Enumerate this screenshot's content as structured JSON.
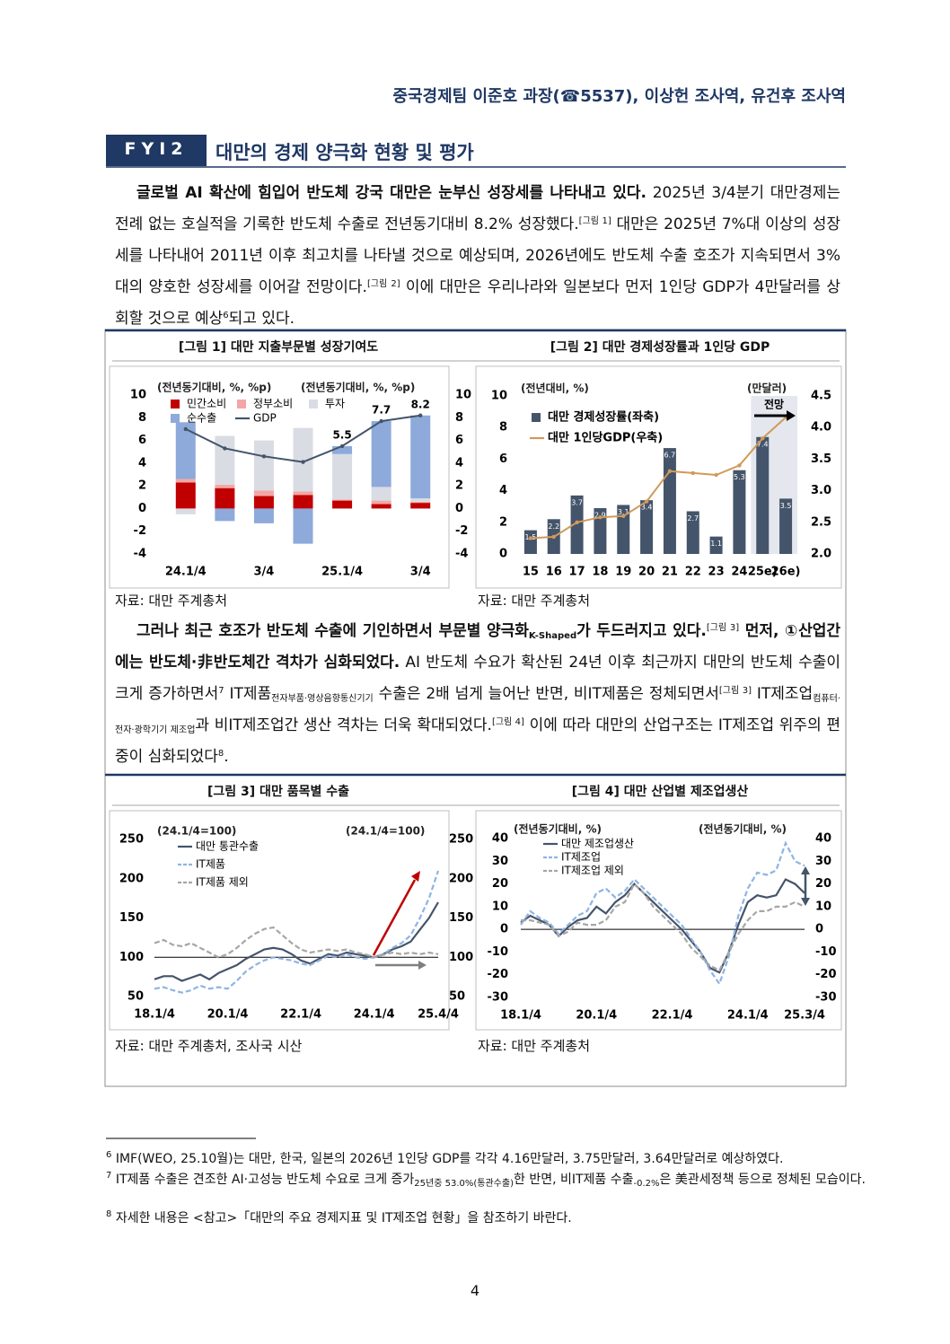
{
  "header": {
    "author": "중국경제팀 이준호 과장(☎5537), 이상헌 조사역, 유건후 조사역"
  },
  "section": {
    "label": "FYI2",
    "title": "대만의 경제 양극화 현황 및 평가"
  },
  "paragraphs": [
    [
      "글로벌 AI 확산에 힘입어 반도체 강국 대만은 눈부신 성장세를 나타내고 있다.",
      " 2025년 3/4분기 대만경제는 전례 없는 호실적을 기록한 반도체 수출로 전년동기대비 8.2% 성장했다.",
      "[그림 1]",
      " 대만은 2025년 7%대 이상의 성장세를 나타내어 2011년 이후 최고치를 나타낼 것으로 예상되며, 2026년에도 반도체 수출 호조가 지속되면서 3%대의 양호한 성장세를 이어갈 전망이다.",
      "[그림 2]",
      " 이에 대만은 우리나라와 일본보다 먼저 1인당 GDP가 4만달러를 상회할 것으로 예상",
      "6",
      "되고 있다."
    ],
    [
      "그러나 최근 호조가 반도체 수출에 기인하면서 부문별 양극화",
      "K-Shaped",
      "가 두드러지고 있다.",
      "[그림 3]",
      " 먼저, ①산업간에는 반도체·非반도체간 격차가 심화되었다.",
      " AI 반도체 수요가 확산된 24년 이후 최근까지 대만의 반도체 수출이 크게 증가하면서",
      "7",
      " IT제품",
      "전자부품·영상음향통신기기",
      " 수출은 2배 넘게 늘어난 반면, 비IT제품은 정체되면서",
      "[그림 3]",
      " IT제조업",
      "컴퓨터·전자·광학기기 제조업",
      "과 비IT제조업간 생산 격차는 더욱 확대되었다.",
      "[그림 4]",
      " 이에 따라 대만의 산업구조는 IT제조업 위주의 편중이 심화되었다",
      "8",
      "."
    ]
  ],
  "chart_data": [
    {
      "type": "bar",
      "stacked": true,
      "title": "[그림 1] 대만 지출부문별 성장기여도",
      "source": "자료: 대만 주계총처",
      "y_label": "(전년동기대비, %, %p)",
      "y2_label": "(전년동기대비, %, %p)",
      "categories": [
        "24.1/4",
        null,
        "3/4",
        null,
        "25.1/4",
        null,
        "3/4"
      ],
      "series": [
        {
          "name": "민간소비",
          "color": "#c00000",
          "values": [
            2.3,
            1.8,
            1.1,
            1.2,
            0.7,
            0.4,
            0.5
          ]
        },
        {
          "name": "정부소비",
          "color": "#f4a6a6",
          "values": [
            0.3,
            0.3,
            0.5,
            0.3,
            0.1,
            0.3,
            0.1
          ]
        },
        {
          "name": "투자",
          "color": "#d9dce3",
          "values": [
            -0.5,
            4.3,
            4.4,
            5.6,
            4.0,
            1.2,
            0.3
          ]
        },
        {
          "name": "순수출",
          "color": "#8eaadb",
          "values": [
            5.0,
            -1.1,
            -1.3,
            -3.1,
            0.7,
            5.8,
            7.3
          ]
        },
        {
          "name": "GDP",
          "type": "line",
          "color": "#44546a",
          "values": [
            7.0,
            5.3,
            4.6,
            4.1,
            5.5,
            7.7,
            8.2
          ],
          "value_labels": [
            null,
            null,
            null,
            null,
            "5.5",
            "7.7",
            "8.2"
          ]
        }
      ],
      "ylim": [
        -4,
        10
      ],
      "yticks": [
        -4,
        -2,
        0,
        2,
        4,
        6,
        8,
        10
      ],
      "y2lim": [
        -4,
        10
      ],
      "y2ticks": [
        -4,
        -2,
        0,
        2,
        4,
        6,
        8,
        10
      ]
    },
    {
      "type": "bar",
      "title": "[그림 2] 대만 경제성장률과 1인당 GDP",
      "source": "자료: 대만 주계총처",
      "y_label": "(전년대비, %)",
      "y2_label": "(만달러)",
      "annotation": "전망",
      "data_labels": true,
      "categories": [
        "15",
        "16",
        "17",
        "18",
        "19",
        "20",
        "21",
        "22",
        "23",
        "24",
        "25e)",
        "26e)"
      ],
      "series": [
        {
          "name": "대만 경제성장률(좌축)",
          "color": "#44546a",
          "values": [
            1.5,
            2.2,
            3.7,
            2.9,
            3.1,
            3.4,
            6.7,
            2.7,
            1.1,
            5.3,
            7.4,
            3.5
          ]
        },
        {
          "name": "대만 1인당GDP(우축)",
          "type": "line",
          "axis": "y2",
          "color": "#d09a5a",
          "values": [
            2.25,
            2.27,
            2.5,
            2.58,
            2.6,
            2.83,
            3.31,
            3.28,
            3.25,
            3.4,
            3.83,
            4.16
          ]
        }
      ],
      "ylim": [
        0,
        10
      ],
      "yticks": [
        0,
        2,
        4,
        6,
        8,
        10
      ],
      "y2lim": [
        2,
        4.5
      ],
      "y2ticks": [
        {
          "value": 2,
          "label": "2.0"
        },
        2.5,
        {
          "value": 3,
          "label": "3.0"
        },
        3.5,
        {
          "value": 4,
          "label": "4.0"
        },
        4.5
      ]
    },
    {
      "type": "line",
      "title": "[그림 3] 대만 품목별 수출",
      "source": "자료: 대만 주계총처, 조사국 시산",
      "y_label": "(24.1/4=100)",
      "y2_label": "(24.1/4=100)",
      "hline": 100,
      "categories": [
        "18.1/4",
        null,
        null,
        null,
        null,
        null,
        null,
        null,
        "20.1/4",
        null,
        null,
        null,
        null,
        null,
        null,
        null,
        "22.1/4",
        null,
        null,
        null,
        null,
        null,
        null,
        null,
        "24.1/4",
        null,
        null,
        null,
        null,
        null,
        null,
        "25.4/4"
      ],
      "series": [
        {
          "name": "대만 통관수출",
          "color": "#44546a",
          "values": [
            72,
            76,
            76,
            70,
            74,
            78,
            72,
            80,
            85,
            90,
            98,
            104,
            110,
            112,
            110,
            104,
            96,
            92,
            98,
            104,
            102,
            106,
            104,
            102,
            100,
            104,
            110,
            114,
            120,
            135,
            150,
            170
          ]
        },
        {
          "name": "IT제품",
          "color": "#8eb4e3",
          "dashed": true,
          "values": [
            60,
            62,
            58,
            55,
            58,
            64,
            60,
            62,
            60,
            70,
            82,
            90,
            96,
            100,
            98,
            96,
            92,
            90,
            96,
            102,
            100,
            104,
            100,
            98,
            100,
            104,
            112,
            118,
            128,
            150,
            175,
            210
          ]
        },
        {
          "name": "IT제품 제외",
          "color": "#a6a6a6",
          "dashed": true,
          "values": [
            118,
            122,
            116,
            114,
            118,
            112,
            106,
            100,
            104,
            112,
            122,
            130,
            136,
            138,
            128,
            118,
            110,
            106,
            108,
            110,
            108,
            110,
            106,
            104,
            100,
            103,
            106,
            104,
            106,
            104,
            106,
            104
          ]
        }
      ],
      "ylim": [
        50,
        250
      ],
      "yticks": [
        50,
        100,
        150,
        200,
        250
      ],
      "y2lim": [
        50,
        250
      ],
      "y2ticks": [
        50,
        100,
        150,
        200,
        250
      ]
    },
    {
      "type": "line",
      "title": "[그림 4] 대만 산업별 제조업생산",
      "source": "자료: 대만 주계총처",
      "y_label": "(전년동기대비, %)",
      "y2_label": "(전년동기대비, %)",
      "hline": 0,
      "categories": [
        "18.1/4",
        null,
        null,
        null,
        null,
        null,
        null,
        null,
        "20.1/4",
        null,
        null,
        null,
        null,
        null,
        null,
        null,
        "22.1/4",
        null,
        null,
        null,
        null,
        null,
        null,
        null,
        "24.1/4",
        null,
        null,
        null,
        null,
        null,
        "25.3/4"
      ],
      "series": [
        {
          "name": "대만 제조업생산",
          "color": "#44546a",
          "values": [
            3,
            6,
            4,
            2,
            -3,
            1,
            4,
            5,
            10,
            7,
            12,
            15,
            20,
            16,
            12,
            8,
            4,
            0,
            -5,
            -10,
            -17,
            -19,
            -10,
            2,
            12,
            15,
            14,
            15,
            22,
            20,
            16
          ]
        },
        {
          "name": "IT제조업",
          "color": "#8eb4e3",
          "dashed": true,
          "values": [
            2,
            8,
            5,
            3,
            -2,
            2,
            6,
            8,
            16,
            18,
            14,
            17,
            22,
            18,
            14,
            10,
            6,
            2,
            -4,
            -10,
            -18,
            -24,
            -12,
            6,
            18,
            25,
            24,
            26,
            38,
            30,
            28
          ]
        },
        {
          "name": "IT제조업 제외",
          "color": "#a6a6a6",
          "dashed": true,
          "values": [
            4,
            4,
            3,
            2,
            -3,
            -1,
            3,
            2,
            2,
            4,
            10,
            12,
            20,
            16,
            10,
            6,
            2,
            -2,
            -8,
            -12,
            -16,
            -18,
            -10,
            -2,
            4,
            8,
            8,
            10,
            10,
            12,
            10
          ]
        }
      ],
      "ylim": [
        -30,
        40
      ],
      "yticks": [
        -30,
        -20,
        -10,
        0,
        10,
        20,
        30,
        40
      ],
      "y2lim": [
        -30,
        40
      ],
      "y2ticks": [
        -30,
        -20,
        -10,
        0,
        10,
        20,
        30,
        40
      ]
    }
  ],
  "footnotes": [
    {
      "number": "6",
      "runs": [
        "IMF(WEO, 25.10월)는 대만, 한국, 일본의 2026년 1인당 GDP를 각각 4.16만달러, 3.75만달러, 3.64만달러로 예상하였다."
      ]
    },
    {
      "number": "7",
      "runs": [
        "IT제품 수출은 견조한 AI·고성능 반도체 수요로 크게 증가",
        "25년중 53.0%(통관수출)",
        "한 반면, 비IT제품 수출",
        "-0.2%",
        "은 美관세정책 등으로 정체된 모습이다."
      ]
    },
    {
      "number": "8",
      "runs": [
        "자세한 내용은 <참고>「대만의 주요 경제지표 및 IT제조업 현황」을 참조하기 바란다."
      ]
    }
  ],
  "page_number": "4"
}
